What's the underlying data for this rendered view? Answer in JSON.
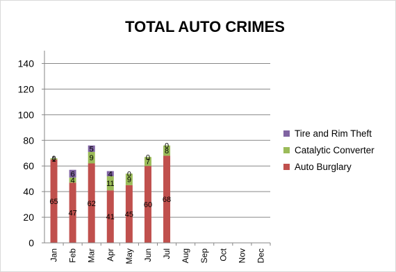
{
  "chart_data": {
    "type": "bar",
    "stacked": true,
    "title": "TOTAL AUTO CRIMES",
    "xlabel": "",
    "ylabel": "",
    "ylim": [
      0,
      150
    ],
    "yticks": [
      0,
      20,
      40,
      60,
      80,
      100,
      120,
      140
    ],
    "grid": true,
    "legend_position": "right",
    "categories": [
      "Jan",
      "Feb",
      "Mar",
      "Apr",
      "May",
      "Jun",
      "Jul",
      "Aug",
      "Sep",
      "Oct",
      "Nov",
      "Dec"
    ],
    "series": [
      {
        "name": "Auto Burglary",
        "color": "#c0504d",
        "values": [
          65,
          47,
          62,
          41,
          45,
          60,
          68,
          null,
          null,
          null,
          null,
          null
        ]
      },
      {
        "name": "Catalytic Converter",
        "color": "#9bbb59",
        "values": [
          1,
          4,
          9,
          11,
          9,
          7,
          8,
          null,
          null,
          null,
          null,
          null
        ]
      },
      {
        "name": "Tire and Rim Theft",
        "color": "#8064a2",
        "values": [
          0,
          6,
          5,
          4,
          0,
          0,
          0,
          null,
          null,
          null,
          null,
          null
        ]
      }
    ],
    "legend_order": [
      "Tire and Rim Theft",
      "Catalytic Converter",
      "Auto Burglary"
    ]
  }
}
